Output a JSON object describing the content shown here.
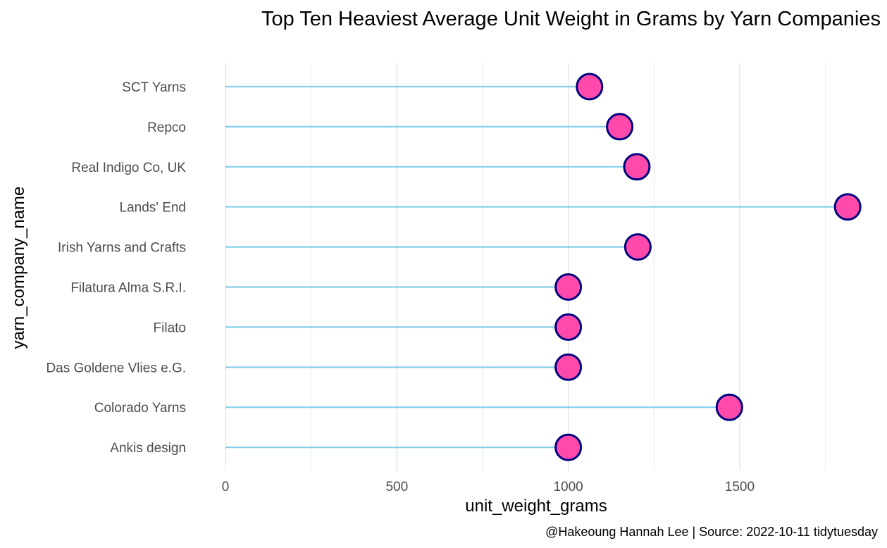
{
  "chart_data": {
    "type": "lollipop",
    "title": "Top Ten Heaviest Average Unit Weight in Grams by Yarn Companies",
    "xlabel": "unit_weight_grams",
    "ylabel": "yarn_company_name",
    "caption": "@Hakeoung Hannah Lee | Source: 2022-10-11 tidytuesday",
    "xlim": [
      0,
      1860
    ],
    "x_ticks": [
      "0",
      "500",
      "1000",
      "1500"
    ],
    "x_tick_values": [
      0,
      500,
      1000,
      1500
    ],
    "x_minor_values": [
      250,
      750,
      1250,
      1750
    ],
    "grid": "vertical",
    "categories": [
      "SCT Yarns",
      "Repco",
      "Real Indigo Co, UK",
      "Lands' End",
      "Irish Yarns and Crafts",
      "Filatura Alma S.R.I.",
      "Filato",
      "Das Goldene Vlies e.G.",
      "Colorado Yarns",
      "Ankis design"
    ],
    "values": [
      1062,
      1150,
      1200,
      1815,
      1203,
      1000,
      1000,
      1000,
      1470,
      1000
    ],
    "colors": {
      "segment": "#87ceeb",
      "point_fill": "#ff4aab",
      "point_stroke": "#000080",
      "grid": "#e3e3e3"
    }
  }
}
